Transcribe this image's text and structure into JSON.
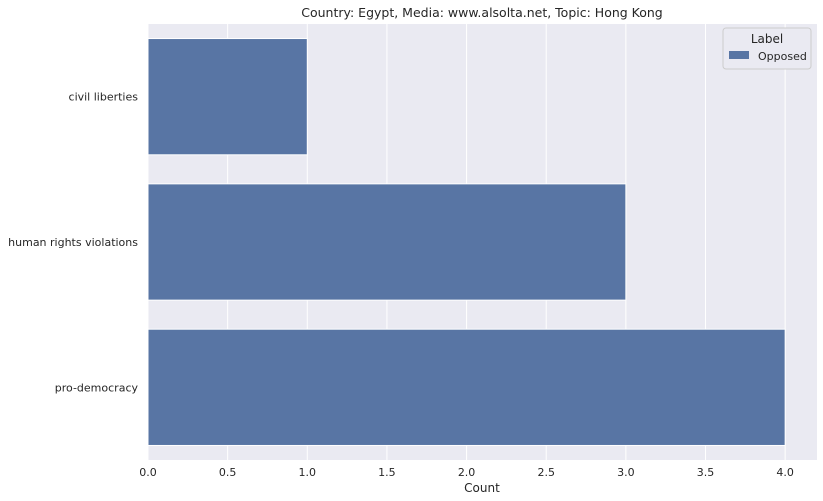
{
  "chart_data": {
    "type": "bar",
    "orientation": "horizontal",
    "title": "Country: Egypt, Media: www.alsolta.net, Topic: Hong Kong",
    "xlabel": "Count",
    "ylabel": "",
    "categories": [
      "civil liberties",
      "human rights violations",
      "pro-democracy"
    ],
    "series": [
      {
        "name": "Opposed",
        "values": [
          1,
          3,
          4
        ],
        "color": "#5875a4"
      }
    ],
    "xlim": [
      0,
      4.2
    ],
    "xticks": [
      "0.0",
      "0.5",
      "1.0",
      "1.5",
      "2.0",
      "2.5",
      "3.0",
      "3.5",
      "4.0"
    ],
    "grid": true,
    "legend": {
      "title": "Label",
      "placement": "top-right"
    },
    "colors": {
      "background": "#eaeaf2",
      "grid": "#ffffff",
      "bar": "#5875a4"
    }
  }
}
